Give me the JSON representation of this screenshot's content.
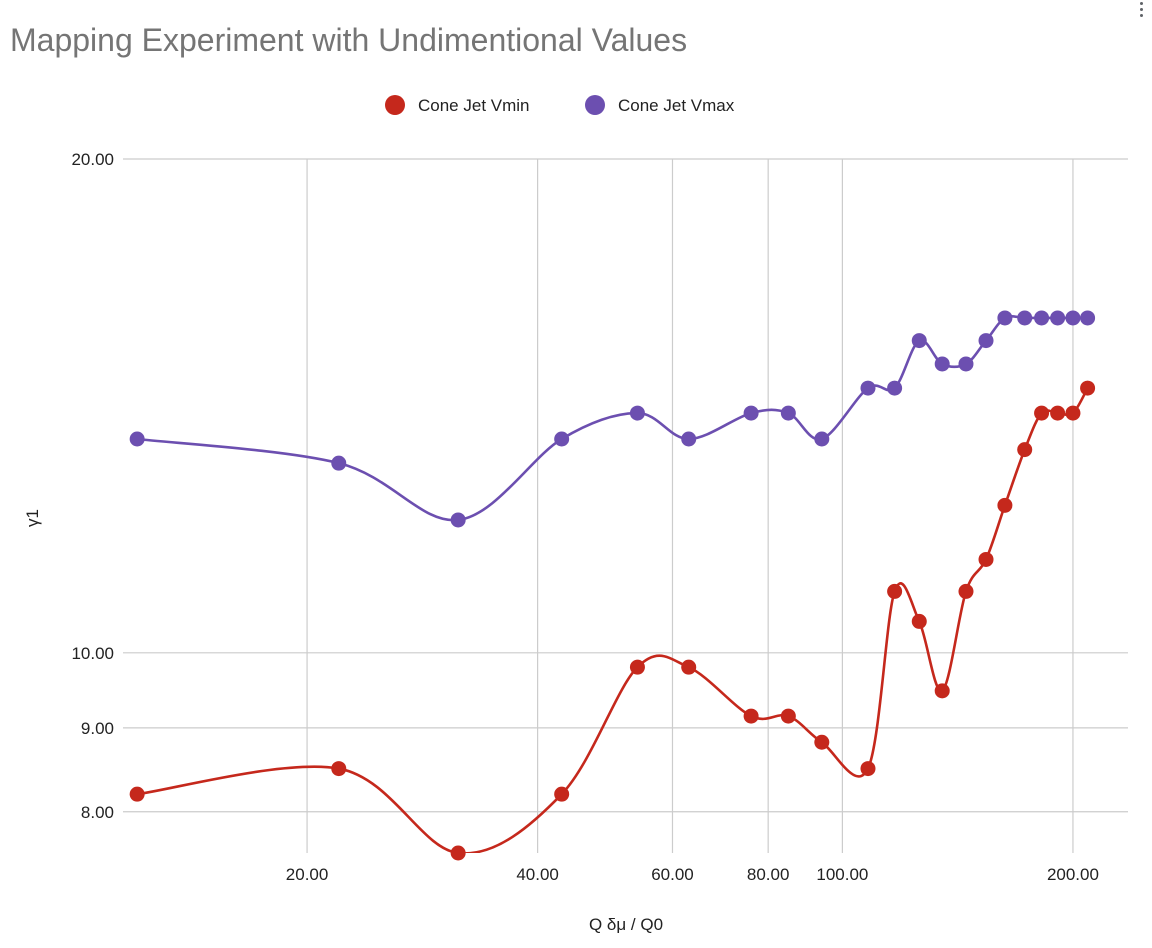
{
  "chart_data": {
    "type": "line",
    "title": "Mapping Experiment with Undimentional Values",
    "xlabel": "Q δμ / Q0",
    "ylabel": "γ1",
    "x_scale": "log",
    "y_scale": "log",
    "xlim": [
      11.5,
      236
    ],
    "ylim": [
      7.55,
      20
    ],
    "x_ticks": [
      {
        "value": 20,
        "label": "20.00"
      },
      {
        "value": 40,
        "label": "40.00"
      },
      {
        "value": 60,
        "label": "60.00"
      },
      {
        "value": 80,
        "label": "80.00"
      },
      {
        "value": 100,
        "label": "100.00"
      },
      {
        "value": 200,
        "label": "200.00"
      }
    ],
    "y_ticks": [
      {
        "value": 8,
        "label": "8.00"
      },
      {
        "value": 9,
        "label": "9.00"
      },
      {
        "value": 10,
        "label": "10.00"
      },
      {
        "value": 20,
        "label": "20.00"
      }
    ],
    "grid": true,
    "legend": "top-center",
    "series": [
      {
        "name": "Cone Jet Vmin",
        "color": "#c5281c",
        "points": [
          [
            12.0,
            8.2
          ],
          [
            22.0,
            8.5
          ],
          [
            31.5,
            7.55
          ],
          [
            43.0,
            8.2
          ],
          [
            54.0,
            9.8
          ],
          [
            63.0,
            9.8
          ],
          [
            76.0,
            9.15
          ],
          [
            85.0,
            9.15
          ],
          [
            94.0,
            8.82
          ],
          [
            108.0,
            8.5
          ],
          [
            117.0,
            10.9
          ],
          [
            126.0,
            10.45
          ],
          [
            135.0,
            9.48
          ],
          [
            145.0,
            10.9
          ],
          [
            154.0,
            11.4
          ],
          [
            163.0,
            12.3
          ],
          [
            173.0,
            13.3
          ],
          [
            182.0,
            14.0
          ],
          [
            191.0,
            14.0
          ],
          [
            200.0,
            14.0
          ],
          [
            209.0,
            14.5
          ]
        ]
      },
      {
        "name": "Cone Jet Vmax",
        "color": "#6c4fb0",
        "points": [
          [
            12.0,
            13.5
          ],
          [
            22.0,
            13.05
          ],
          [
            31.5,
            12.05
          ],
          [
            43.0,
            13.5
          ],
          [
            54.0,
            14.0
          ],
          [
            63.0,
            13.5
          ],
          [
            76.0,
            14.0
          ],
          [
            85.0,
            14.0
          ],
          [
            94.0,
            13.5
          ],
          [
            108.0,
            14.5
          ],
          [
            117.0,
            14.5
          ],
          [
            126.0,
            15.5
          ],
          [
            135.0,
            15.0
          ],
          [
            145.0,
            15.0
          ],
          [
            154.0,
            15.5
          ],
          [
            163.0,
            16.0
          ],
          [
            173.0,
            16.0
          ],
          [
            182.0,
            16.0
          ],
          [
            191.0,
            16.0
          ],
          [
            200.0,
            16.0
          ],
          [
            209.0,
            16.0
          ]
        ]
      }
    ]
  }
}
